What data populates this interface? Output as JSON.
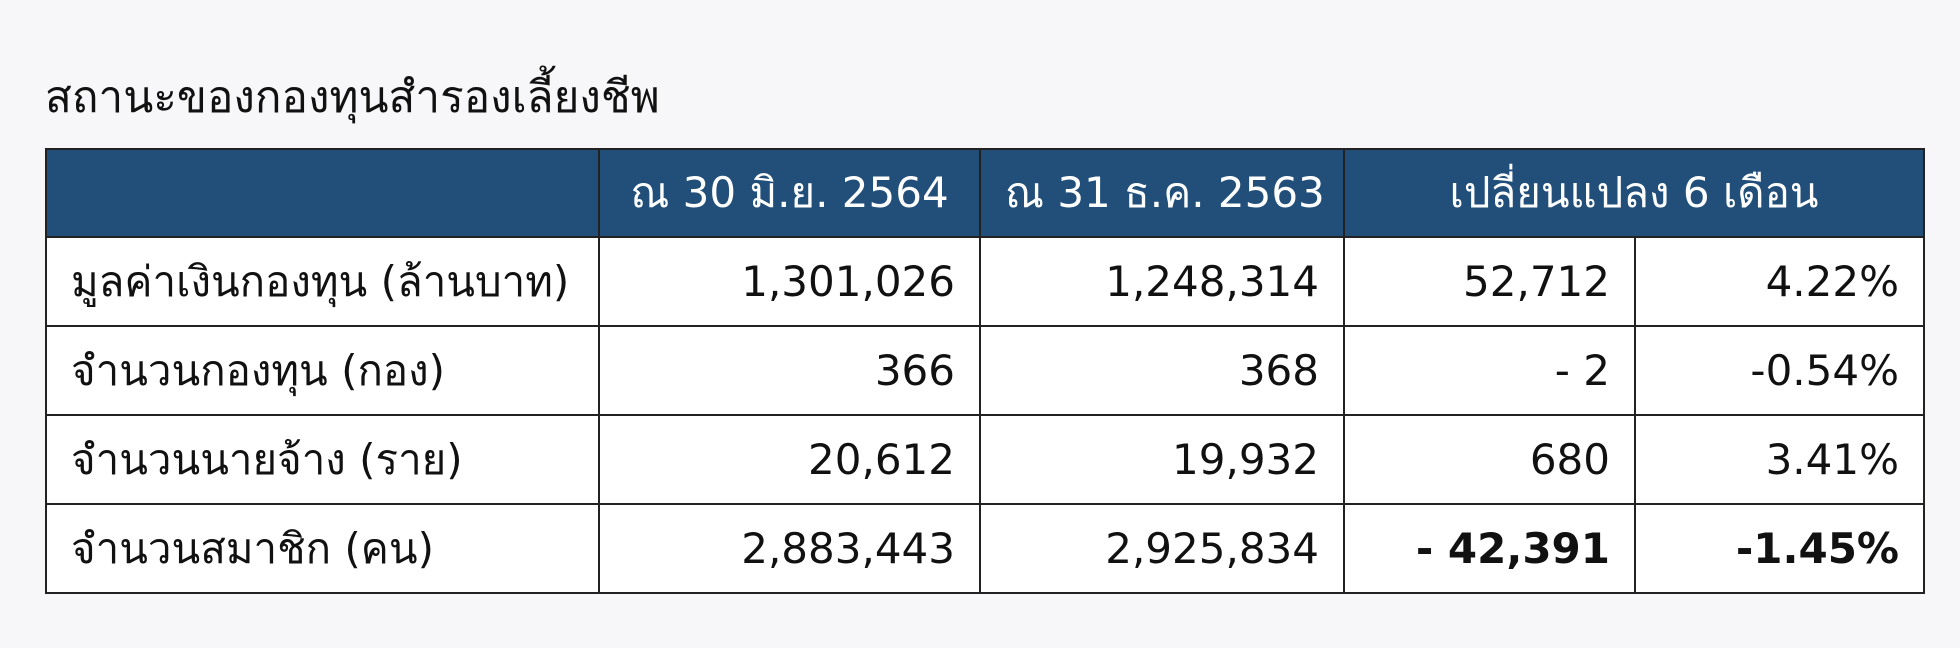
{
  "title": "สถานะของกองทุนสำรองเลี้ยงชีพ",
  "table": {
    "header": [
      "ณ 30 มิ.ย. 2564",
      "ณ 31 ธ.ค. 2563",
      "เปลี่ยนแปลง 6 เดือน"
    ],
    "rows": [
      [
        "มูลค่าเงินกองทุน (ล้านบาท)",
        "1,301,026",
        "1,248,314",
        "52,712",
        "4.22%"
      ],
      [
        "จำนวนกองทุน (กอง)",
        "366",
        "368",
        "- 2",
        "-0.54%"
      ],
      [
        "จำนวนนายจ้าง (ราย)",
        "20,612",
        "19,932",
        "680",
        "3.41%"
      ],
      [
        "จำนวนสมาชิก (คน)",
        "2,883,443",
        "2,925,834",
        "- 42,391",
        "-1.45%"
      ]
    ]
  }
}
